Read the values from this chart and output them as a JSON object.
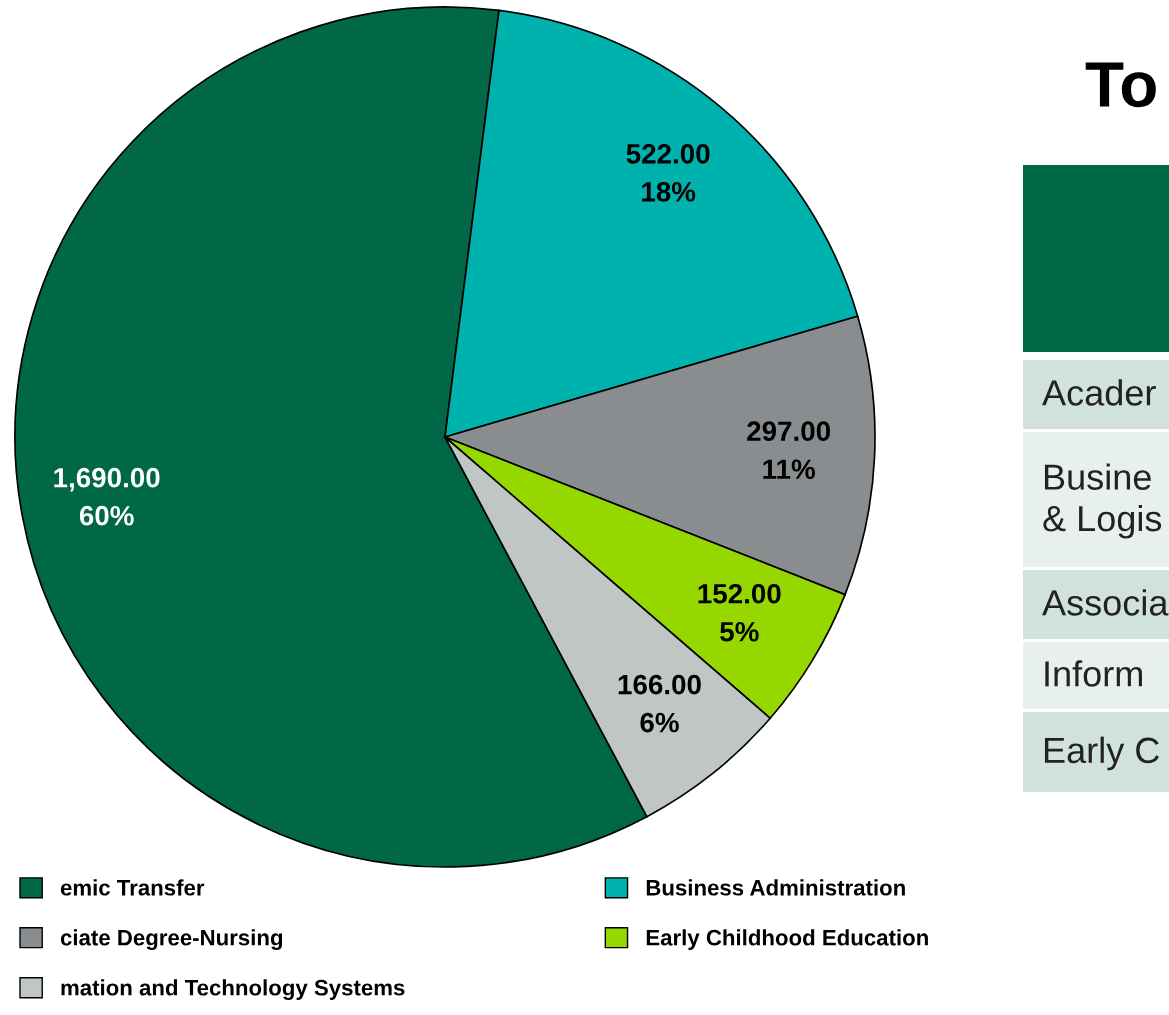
{
  "chart_data": {
    "type": "pie",
    "title": "To",
    "categories": [
      "emic Transfer",
      "Business Administration",
      "ciate Degree-Nursing",
      "Early Childhood Education",
      "mation and Technology Systems"
    ],
    "values": [
      1690,
      522,
      297,
      152,
      166
    ],
    "colors": [
      "#006747",
      "#00B2AE",
      "#8A8D8F",
      "#97D700",
      "#BFC6C3"
    ],
    "value_labels": [
      "1,690.00\n60%",
      "522.00\n18%",
      "297.00\n11%",
      "152.00\n5%",
      "166.00\n6%"
    ],
    "legend": "bottom",
    "annotations": [
      "Acader",
      "Busine\n& Logis",
      "Associa",
      "Inform",
      "Early C"
    ]
  }
}
